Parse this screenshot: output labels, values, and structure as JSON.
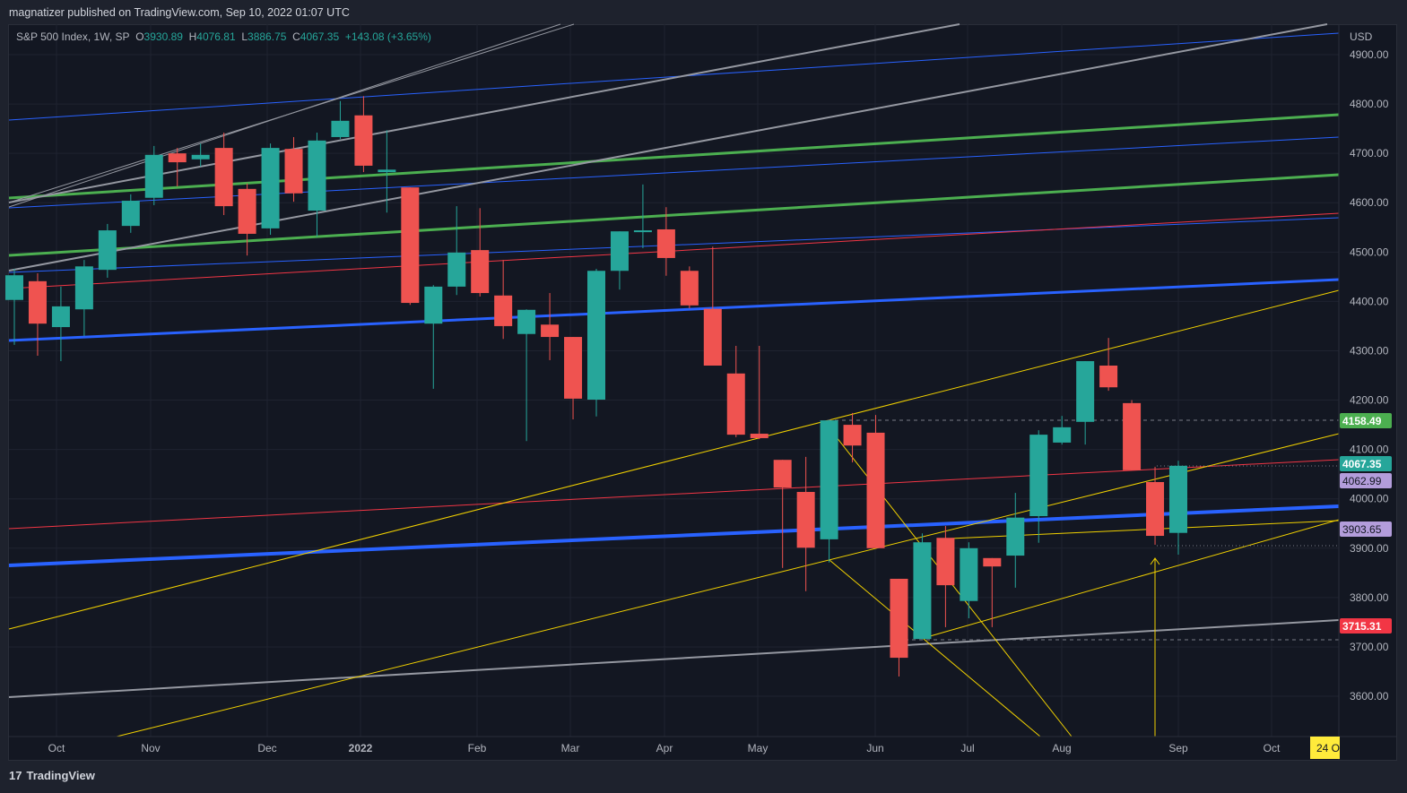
{
  "header": {
    "published": "magnatizer published on TradingView.com, Sep 10, 2022 01:07 UTC"
  },
  "legend": {
    "symbol": "S&P 500 Index, 1W, SP",
    "o_label": "O",
    "o": "3930.89",
    "h_label": "H",
    "h": "4076.81",
    "l_label": "L",
    "l": "3886.75",
    "c_label": "C",
    "c": "4067.35",
    "change": "+143.08 (+3.65%)"
  },
  "footer": {
    "brand": "TradingView"
  },
  "colors": {
    "up": "#26a69a",
    "down": "#ef5350",
    "bg": "#131722",
    "grid": "#2a2e39"
  },
  "chart_data": {
    "type": "candlestick",
    "title": "S&P 500 Index, 1W, SP",
    "currency": "USD",
    "ylim": [
      3530,
      4962
    ],
    "yticks": [
      "4900.00",
      "4800.00",
      "4700.00",
      "4600.00",
      "4500.00",
      "4400.00",
      "4300.00",
      "4200.00",
      "4100.00",
      "4000.00",
      "3900.00",
      "3800.00",
      "3700.00",
      "3600.00"
    ],
    "xticks": [
      "Oct",
      "Nov",
      "Dec",
      "2022",
      "Feb",
      "Mar",
      "Apr",
      "May",
      "Jun",
      "Jul",
      "Aug",
      "Sep",
      "Oct"
    ],
    "cursor_date_label": "24 O",
    "price_labels": [
      {
        "value": "4158.49",
        "color": "#4caf50"
      },
      {
        "value": "4067.35",
        "color": "#26a69a"
      },
      {
        "value": "4062.99",
        "color": "#b39ddb"
      },
      {
        "value": "3903.65",
        "color": "#b39ddb"
      },
      {
        "value": "3715.31",
        "color": "#f23645"
      }
    ],
    "ohlc": [
      [
        4403,
        4466,
        4312,
        4453
      ],
      [
        4441,
        4457,
        4290,
        4355
      ],
      [
        4348,
        4430,
        4279,
        4390
      ],
      [
        4384,
        4484,
        4330,
        4471
      ],
      [
        4464,
        4557,
        4448,
        4544
      ],
      [
        4553,
        4617,
        4539,
        4604
      ],
      [
        4610,
        4715,
        4595,
        4697
      ],
      [
        4700,
        4711,
        4633,
        4682
      ],
      [
        4688,
        4720,
        4673,
        4697
      ],
      [
        4711,
        4742,
        4575,
        4593
      ],
      [
        4628,
        4639,
        4493,
        4537
      ],
      [
        4548,
        4720,
        4535,
        4711
      ],
      [
        4709,
        4733,
        4602,
        4619
      ],
      [
        4584,
        4742,
        4531,
        4726
      ],
      [
        4733,
        4806,
        4729,
        4766
      ],
      [
        4777,
        4816,
        4662,
        4675
      ],
      [
        4662,
        4747,
        4580,
        4667
      ],
      [
        4631,
        4631,
        4393,
        4397
      ],
      [
        4355,
        4433,
        4223,
        4430
      ],
      [
        4430,
        4593,
        4413,
        4499
      ],
      [
        4504,
        4589,
        4410,
        4417
      ],
      [
        4412,
        4484,
        4324,
        4350
      ],
      [
        4334,
        4384,
        4117,
        4383
      ],
      [
        4353,
        4417,
        4281,
        4328
      ],
      [
        4328,
        4328,
        4161,
        4203
      ],
      [
        4201,
        4466,
        4167,
        4462
      ],
      [
        4462,
        4542,
        4424,
        4542
      ],
      [
        4541,
        4637,
        4508,
        4544
      ],
      [
        4546,
        4591,
        4452,
        4488
      ],
      [
        4462,
        4471,
        4386,
        4392
      ],
      [
        4385,
        4511,
        4270,
        4270
      ],
      [
        4254,
        4310,
        4125,
        4130
      ],
      [
        4132,
        4310,
        4121,
        4123
      ],
      [
        4079,
        4079,
        3860,
        4023
      ],
      [
        4014,
        4085,
        3813,
        3901
      ],
      [
        3918,
        4159,
        3871,
        4159
      ],
      [
        4150,
        4174,
        4074,
        4108
      ],
      [
        4134,
        4170,
        3900,
        3900
      ],
      [
        3838,
        3838,
        3640,
        3678
      ],
      [
        3716,
        3930,
        3716,
        3912
      ],
      [
        3921,
        3945,
        3740,
        3825
      ],
      [
        3793,
        3912,
        3758,
        3900
      ],
      [
        3880,
        3880,
        3740,
        3863
      ],
      [
        3885,
        4012,
        3820,
        3962
      ],
      [
        3965,
        4139,
        3911,
        4130
      ],
      [
        4114,
        4168,
        4110,
        4145
      ],
      [
        4156,
        4279,
        4110,
        4279
      ],
      [
        4270,
        4326,
        4219,
        4226
      ],
      [
        4194,
        4200,
        4058,
        4058
      ],
      [
        4034,
        4065,
        3907,
        3925
      ],
      [
        3931,
        4077,
        3887,
        4067
      ]
    ]
  }
}
